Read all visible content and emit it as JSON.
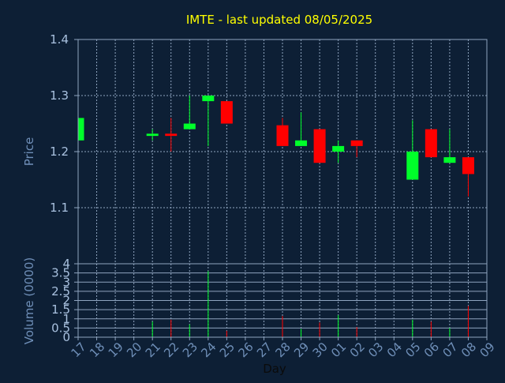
{
  "chart_data": {
    "type": "candlestick",
    "title": "IMTE - last updated 08/05/2025",
    "colors": {
      "background": "#0d1f35",
      "grid": "#8fa4bf",
      "up": "#00ff2a",
      "down": "#ff0000",
      "title": "#ffff00",
      "axis_text": "#a9c1df",
      "x_tick_text": "#6f8fb8"
    },
    "price_panel": {
      "ylabel": "Price",
      "ylim": [
        1.0,
        1.4
      ],
      "yticks": [
        "1.1",
        "1.2",
        "1.3",
        "1.4"
      ],
      "grid": true
    },
    "volume_panel": {
      "ylabel": "Volume (0000)",
      "ylim": [
        0,
        4
      ],
      "yticks": [
        "0",
        "0.5",
        "1",
        "1.5",
        "2",
        "2.5",
        "3",
        "3.5",
        "4"
      ],
      "grid": true
    },
    "xlabel": "Day",
    "x_ticks": [
      "17",
      "18",
      "19",
      "20",
      "21",
      "22",
      "23",
      "24",
      "25",
      "26",
      "27",
      "28",
      "29",
      "30",
      "01",
      "02",
      "03",
      "04",
      "05",
      "06",
      "07",
      "08",
      "09"
    ],
    "candles": [
      {
        "day": "17",
        "open": 1.22,
        "close": 1.26,
        "high": 1.26,
        "low": 1.22
      },
      {
        "day": "21",
        "open": 1.228,
        "close": 1.232,
        "high": 1.24,
        "low": 1.22
      },
      {
        "day": "22",
        "open": 1.232,
        "close": 1.228,
        "high": 1.26,
        "low": 1.2
      },
      {
        "day": "23",
        "open": 1.24,
        "close": 1.25,
        "high": 1.3,
        "low": 1.24
      },
      {
        "day": "24",
        "open": 1.29,
        "close": 1.3,
        "high": 1.3,
        "low": 1.21
      },
      {
        "day": "25",
        "open": 1.29,
        "close": 1.25,
        "high": 1.29,
        "low": 1.25
      },
      {
        "day": "28",
        "open": 1.247,
        "close": 1.21,
        "high": 1.26,
        "low": 1.21
      },
      {
        "day": "29",
        "open": 1.21,
        "close": 1.22,
        "high": 1.27,
        "low": 1.21
      },
      {
        "day": "30",
        "open": 1.24,
        "close": 1.18,
        "high": 1.24,
        "low": 1.18
      },
      {
        "day": "01",
        "open": 1.2,
        "close": 1.21,
        "high": 1.22,
        "low": 1.18
      },
      {
        "day": "02",
        "open": 1.22,
        "close": 1.21,
        "high": 1.22,
        "low": 1.19
      },
      {
        "day": "05",
        "open": 1.15,
        "close": 1.2,
        "high": 1.256,
        "low": 1.15
      },
      {
        "day": "06",
        "open": 1.24,
        "close": 1.19,
        "high": 1.24,
        "low": 1.19
      },
      {
        "day": "07",
        "open": 1.18,
        "close": 1.19,
        "high": 1.24,
        "low": 1.18
      },
      {
        "day": "08",
        "open": 1.19,
        "close": 1.16,
        "high": 1.19,
        "low": 1.12
      }
    ],
    "volumes": [
      {
        "day": "21",
        "value": 0.85,
        "dir": "up"
      },
      {
        "day": "22",
        "value": 0.95,
        "dir": "down"
      },
      {
        "day": "23",
        "value": 0.7,
        "dir": "up"
      },
      {
        "day": "24",
        "value": 3.6,
        "dir": "up"
      },
      {
        "day": "25",
        "value": 0.35,
        "dir": "down"
      },
      {
        "day": "28",
        "value": 1.15,
        "dir": "down"
      },
      {
        "day": "29",
        "value": 0.45,
        "dir": "up"
      },
      {
        "day": "30",
        "value": 0.8,
        "dir": "down"
      },
      {
        "day": "01",
        "value": 1.2,
        "dir": "up"
      },
      {
        "day": "02",
        "value": 0.55,
        "dir": "down"
      },
      {
        "day": "05",
        "value": 0.95,
        "dir": "up"
      },
      {
        "day": "06",
        "value": 0.85,
        "dir": "down"
      },
      {
        "day": "07",
        "value": 0.5,
        "dir": "up"
      },
      {
        "day": "08",
        "value": 1.7,
        "dir": "down"
      }
    ]
  }
}
